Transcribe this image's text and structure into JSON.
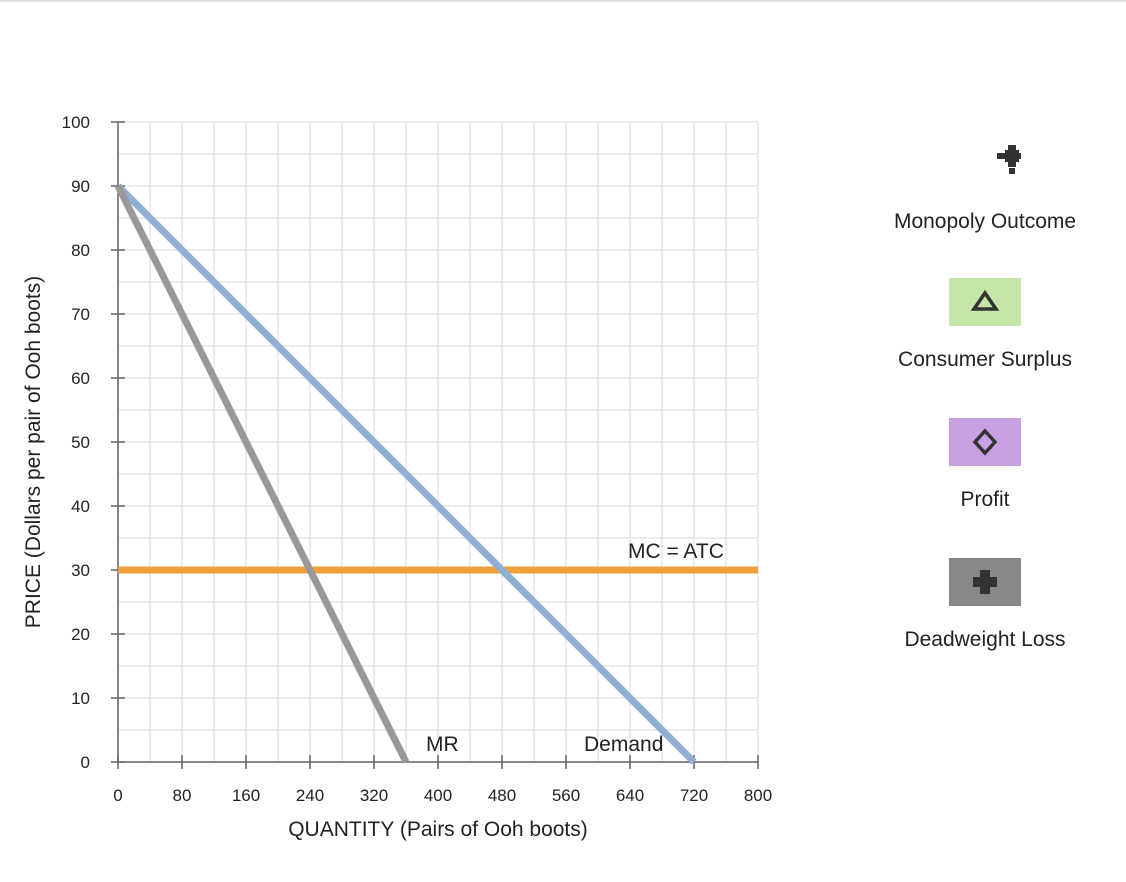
{
  "chart_data": {
    "type": "line",
    "xlabel": "QUANTITY (Pairs of Ooh boots)",
    "ylabel": "PRICE (Dollars per pair of Ooh boots)",
    "xlim": [
      0,
      800
    ],
    "ylim": [
      0,
      100
    ],
    "x_ticks": [
      0,
      80,
      160,
      240,
      320,
      400,
      480,
      560,
      640,
      720,
      800
    ],
    "y_ticks": [
      0,
      10,
      20,
      30,
      40,
      50,
      60,
      70,
      80,
      90,
      100
    ],
    "grid": true,
    "series": [
      {
        "name": "Demand",
        "color": "#8fafd7",
        "points": [
          [
            0,
            90
          ],
          [
            720,
            0
          ]
        ]
      },
      {
        "name": "MR",
        "color": "#999999",
        "points": [
          [
            0,
            90
          ],
          [
            360,
            0
          ]
        ]
      },
      {
        "name": "MC = ATC",
        "color": "#f0a03a",
        "points": [
          [
            0,
            30
          ],
          [
            800,
            30
          ]
        ]
      }
    ]
  },
  "palette": {
    "items": [
      {
        "label": "Monopoly Outcome",
        "icon": "plus-dot-icon",
        "color": "#333333"
      },
      {
        "label": "Consumer Surplus",
        "icon": "triangle-icon",
        "color": "#c5e6a6"
      },
      {
        "label": "Profit",
        "icon": "diamond-icon",
        "color": "#c9a0e1"
      },
      {
        "label": "Deadweight Loss",
        "icon": "cross-icon",
        "color": "#888888"
      }
    ]
  }
}
